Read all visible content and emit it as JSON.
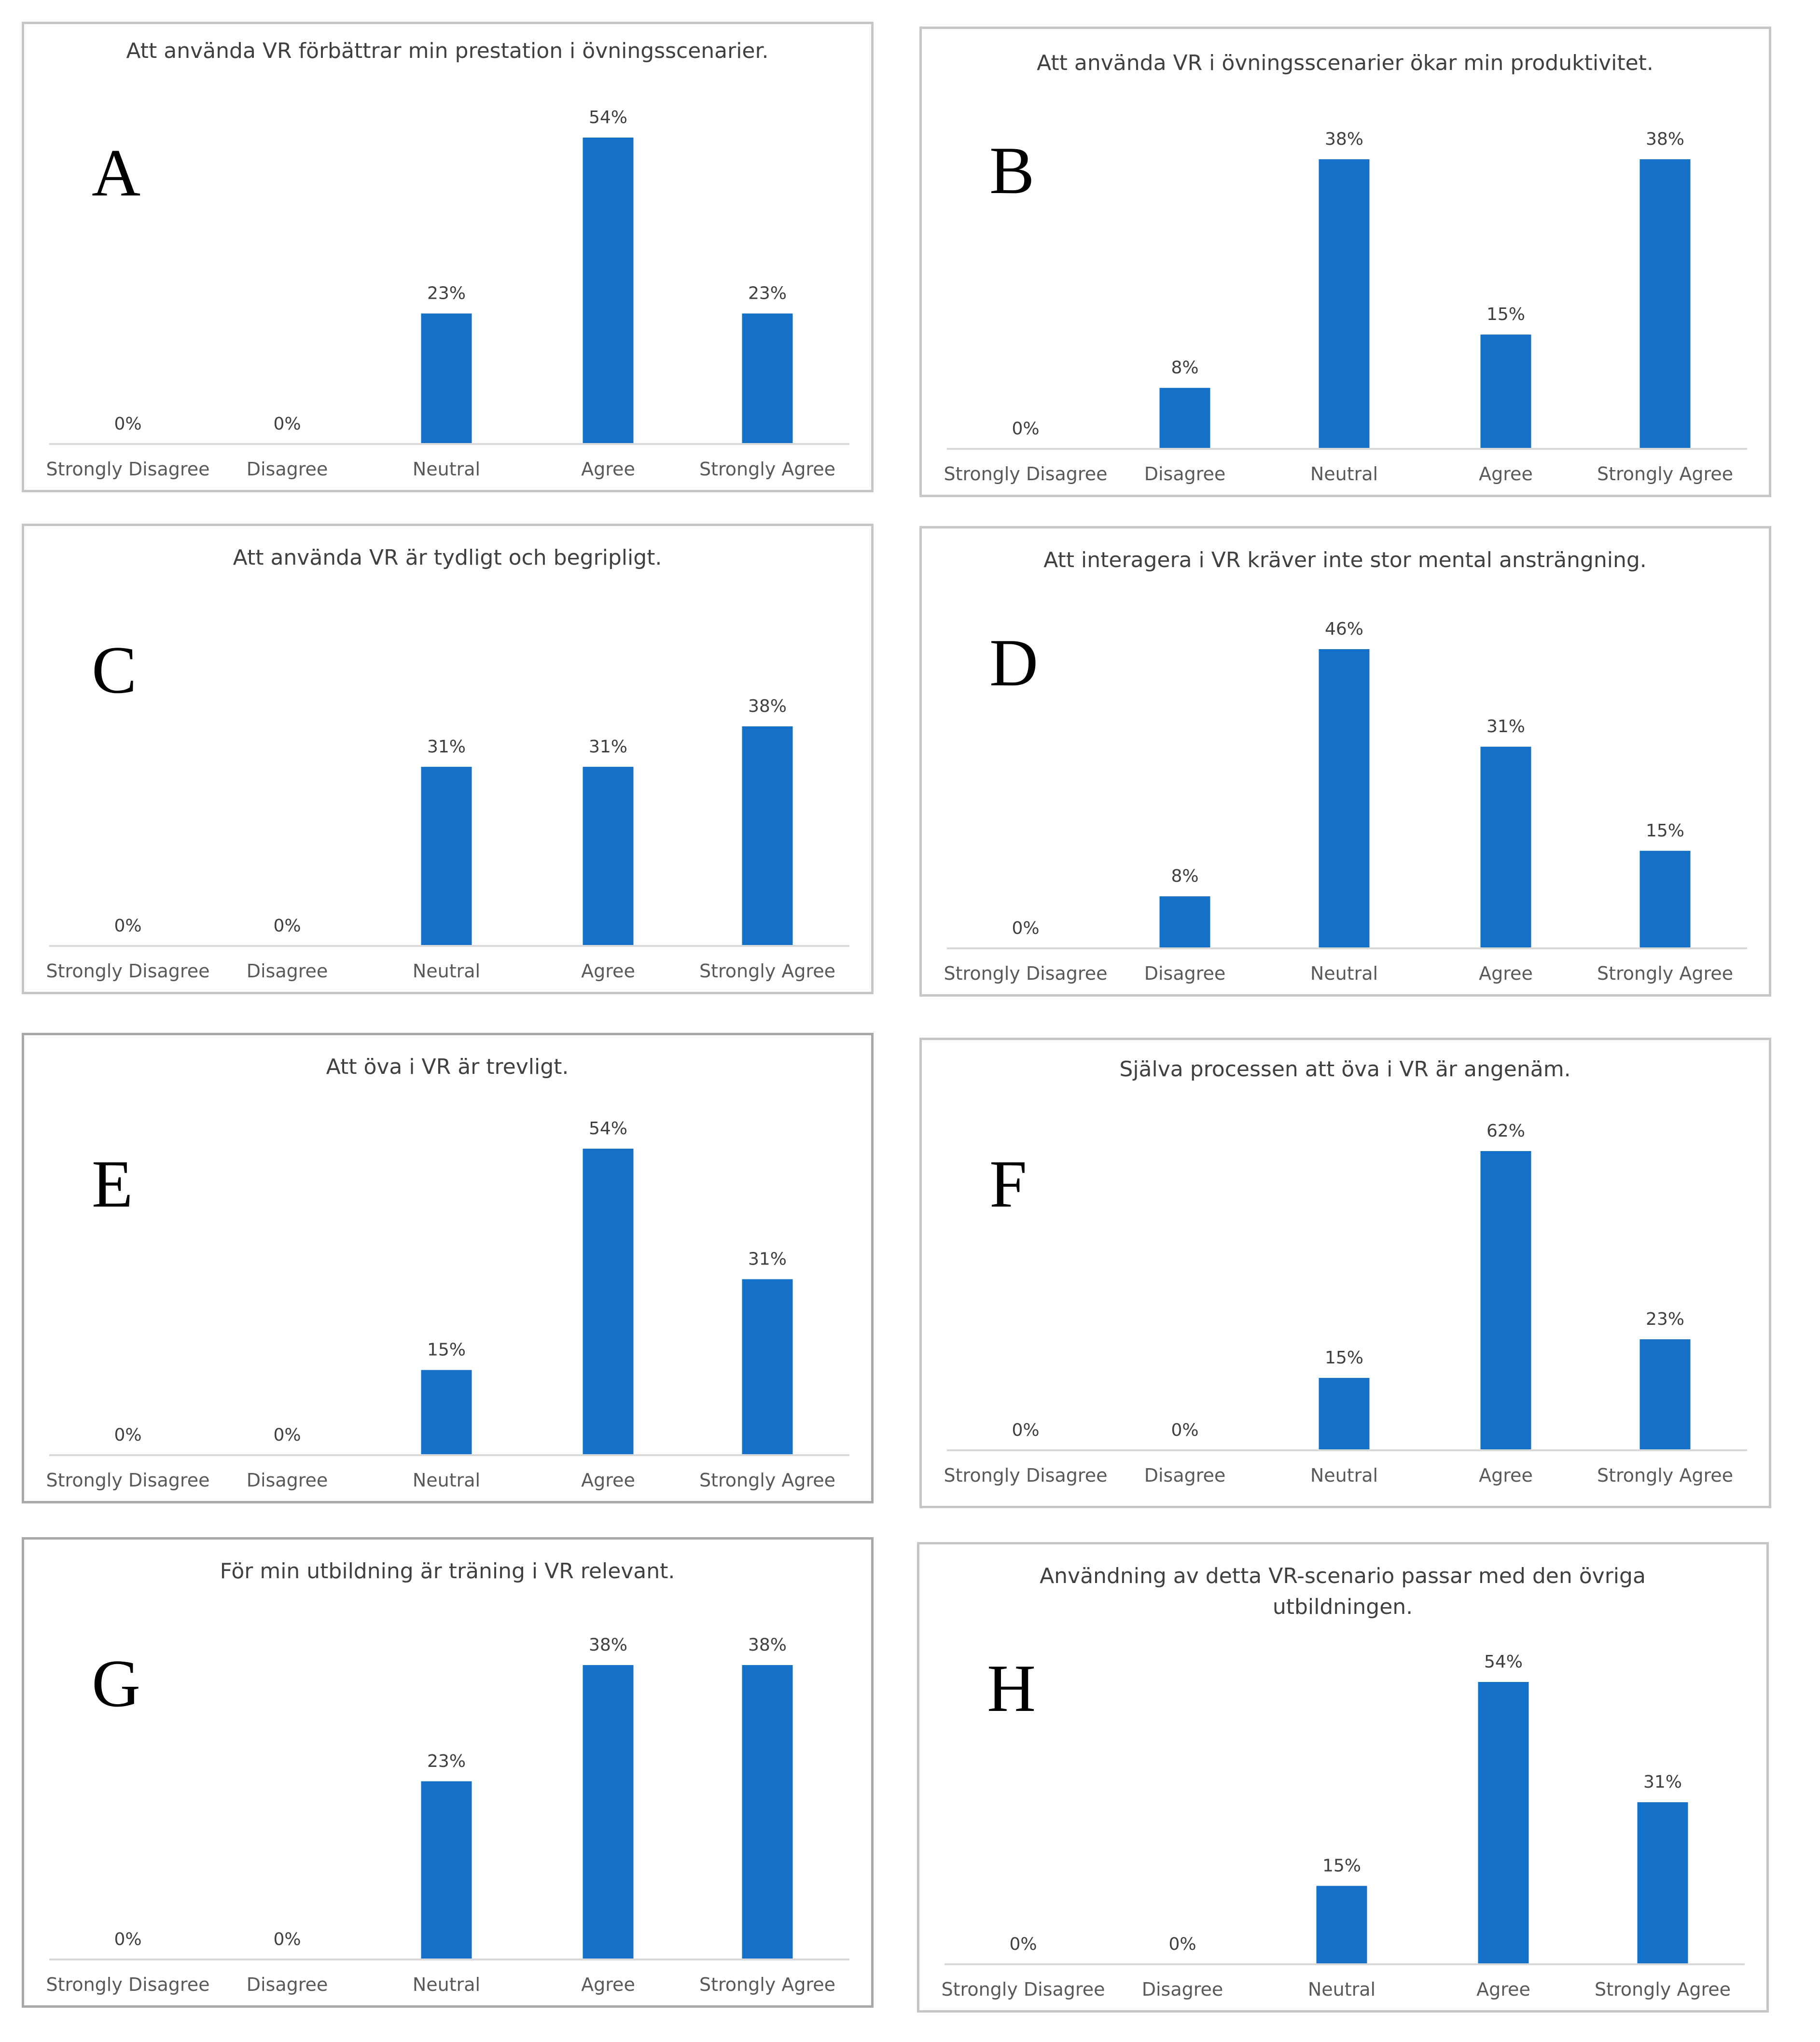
{
  "chart_data": [
    {
      "panel": "A",
      "type": "bar",
      "title_lines": [
        "Att använda VR förbättrar min prestation i övningsscenarier."
      ],
      "categories": [
        "Strongly Disagree",
        "Disagree",
        "Neutral",
        "Agree",
        "Strongly Agree"
      ],
      "values": [
        0,
        0,
        23,
        54,
        23
      ],
      "labels": [
        "0%",
        "0%",
        "23%",
        "54%",
        "23%"
      ],
      "ylim": [
        0,
        54
      ],
      "xlabel": "",
      "ylabel": ""
    },
    {
      "panel": "B",
      "type": "bar",
      "title_lines": [
        "Att använda VR i övningsscenarier ökar min produktivitet."
      ],
      "categories": [
        "Strongly Disagree",
        "Disagree",
        "Neutral",
        "Agree",
        "Strongly Agree"
      ],
      "values": [
        0,
        8,
        38,
        15,
        38
      ],
      "labels": [
        "0%",
        "8%",
        "38%",
        "15%",
        "38%"
      ],
      "ylim": [
        0,
        38
      ],
      "xlabel": "",
      "ylabel": ""
    },
    {
      "panel": "C",
      "type": "bar",
      "title_lines": [
        "Att använda VR är tydligt och begripligt."
      ],
      "categories": [
        "Strongly Disagree",
        "Disagree",
        "Neutral",
        "Agree",
        "Strongly Agree"
      ],
      "values": [
        0,
        0,
        31,
        31,
        38
      ],
      "labels": [
        "0%",
        "0%",
        "31%",
        "31%",
        "38%"
      ],
      "ylim": [
        0,
        38
      ],
      "xlabel": "",
      "ylabel": ""
    },
    {
      "panel": "D",
      "type": "bar",
      "title_lines": [
        "Att interagera i VR kräver inte stor mental ansträngning."
      ],
      "categories": [
        "Strongly Disagree",
        "Disagree",
        "Neutral",
        "Agree",
        "Strongly Agree"
      ],
      "values": [
        0,
        8,
        46,
        31,
        15
      ],
      "labels": [
        "0%",
        "8%",
        "46%",
        "31%",
        "15%"
      ],
      "ylim": [
        0,
        46
      ],
      "xlabel": "",
      "ylabel": ""
    },
    {
      "panel": "E",
      "type": "bar",
      "title_lines": [
        "Att öva i VR är trevligt."
      ],
      "categories": [
        "Strongly Disagree",
        "Disagree",
        "Neutral",
        "Agree",
        "Strongly Agree"
      ],
      "values": [
        0,
        0,
        15,
        54,
        31
      ],
      "labels": [
        "0%",
        "0%",
        "15%",
        "54%",
        "31%"
      ],
      "ylim": [
        0,
        54
      ],
      "xlabel": "",
      "ylabel": ""
    },
    {
      "panel": "F",
      "type": "bar",
      "title_lines": [
        "Själva processen att öva i VR är angenäm."
      ],
      "categories": [
        "Strongly Disagree",
        "Disagree",
        "Neutral",
        "Agree",
        "Strongly Agree"
      ],
      "values": [
        0,
        0,
        15,
        62,
        23
      ],
      "labels": [
        "0%",
        "0%",
        "15%",
        "62%",
        "23%"
      ],
      "ylim": [
        0,
        62
      ],
      "xlabel": "",
      "ylabel": ""
    },
    {
      "panel": "G",
      "type": "bar",
      "title_lines": [
        "För min utbildning är träning i VR relevant."
      ],
      "categories": [
        "Strongly Disagree",
        "Disagree",
        "Neutral",
        "Agree",
        "Strongly Agree"
      ],
      "values": [
        0,
        0,
        23,
        38,
        38
      ],
      "labels": [
        "0%",
        "0%",
        "23%",
        "38%",
        "38%"
      ],
      "ylim": [
        0,
        38
      ],
      "xlabel": "",
      "ylabel": ""
    },
    {
      "panel": "H",
      "type": "bar",
      "title_lines": [
        "Användning av detta VR-scenario passar med den övriga",
        "utbildningen."
      ],
      "categories": [
        "Strongly Disagree",
        "Disagree",
        "Neutral",
        "Agree",
        "Strongly Agree"
      ],
      "values": [
        0,
        0,
        15,
        54,
        31
      ],
      "labels": [
        "0%",
        "0%",
        "15%",
        "54%",
        "31%"
      ],
      "ylim": [
        0,
        54
      ],
      "xlabel": "",
      "ylabel": ""
    }
  ],
  "colors": {
    "bar": "#1570c8",
    "axis": "#d9d9d9",
    "title_text": "#404040",
    "tick_text": "#595959"
  }
}
